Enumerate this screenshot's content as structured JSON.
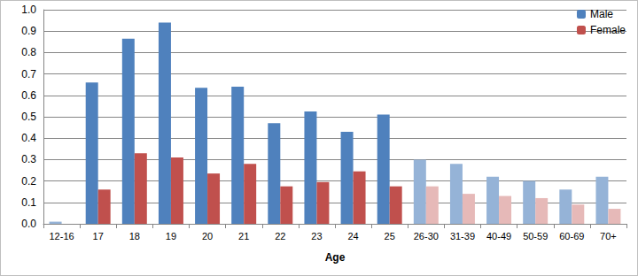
{
  "chart_data": {
    "type": "bar",
    "x_label": "Age",
    "categories": [
      "12-16",
      "17",
      "18",
      "19",
      "20",
      "21",
      "22",
      "23",
      "24",
      "25",
      "26-30",
      "31-39",
      "40-49",
      "50-59",
      "60-69",
      "70+"
    ],
    "series": [
      {
        "name": "Male",
        "color": "#4f81bd",
        "colors": [
          "#95b3d7",
          "#4f81bd",
          "#4f81bd",
          "#4f81bd",
          "#4f81bd",
          "#4f81bd",
          "#4f81bd",
          "#4f81bd",
          "#4f81bd",
          "#4f81bd",
          "#95b3d7",
          "#95b3d7",
          "#95b3d7",
          "#95b3d7",
          "#95b3d7",
          "#95b3d7"
        ],
        "values": [
          0.01,
          0.66,
          0.865,
          0.94,
          0.635,
          0.64,
          0.47,
          0.525,
          0.43,
          0.51,
          0.3,
          0.28,
          0.22,
          0.2,
          0.16,
          0.22
        ]
      },
      {
        "name": "Female",
        "color": "#c0504d",
        "colors": [
          "#e6b9b8",
          "#c0504d",
          "#c0504d",
          "#c0504d",
          "#c0504d",
          "#c0504d",
          "#c0504d",
          "#c0504d",
          "#c0504d",
          "#c0504d",
          "#e6b9b8",
          "#e6b9b8",
          "#e6b9b8",
          "#e6b9b8",
          "#e6b9b8",
          "#e6b9b8"
        ],
        "values": [
          0,
          0.16,
          0.33,
          0.31,
          0.235,
          0.28,
          0.175,
          0.195,
          0.245,
          0.175,
          0.175,
          0.14,
          0.13,
          0.12,
          0.09,
          0.07
        ]
      }
    ],
    "ylim": [
      0,
      1
    ],
    "yticks": [
      {
        "value": 0,
        "label": "0.0"
      },
      0.1,
      0.2,
      0.3,
      0.4,
      0.5,
      0.6,
      0.7,
      0.8,
      0.9,
      {
        "value": 1,
        "label": "1.0"
      }
    ],
    "grid": true,
    "legend": "upper right"
  }
}
